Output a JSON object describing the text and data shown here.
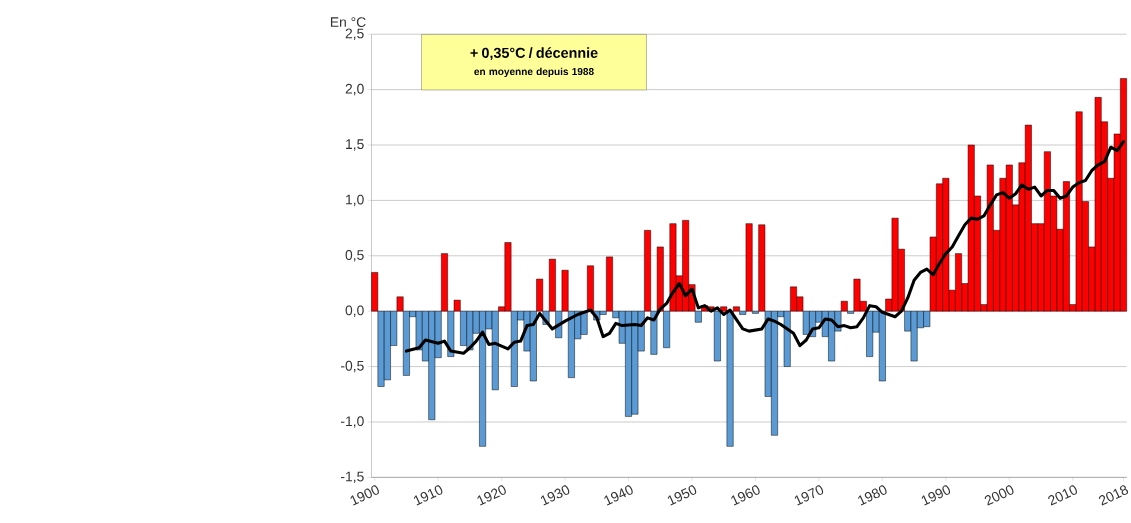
{
  "chart_data": {
    "type": "bar",
    "ylabel": "En °C",
    "annotations": [
      "+ 0,35°C / décennie",
      "en moyenne depuis 1988"
    ],
    "xlim": [
      1899.5,
      2018.5
    ],
    "xticks": [
      1900,
      1910,
      1920,
      1930,
      1940,
      1950,
      1960,
      1970,
      1980,
      1990,
      2000,
      2010,
      2018
    ],
    "ylim": [
      -1.5,
      2.5
    ],
    "yticks": [
      {
        "value": -1.5,
        "label": "-1,5"
      },
      {
        "value": -1.0,
        "label": "-1,0"
      },
      {
        "value": -0.5,
        "label": "-0,5"
      },
      {
        "value": 0,
        "label": "0,0"
      },
      {
        "value": 0.5,
        "label": "0,5"
      },
      {
        "value": 1.0,
        "label": "1,0"
      },
      {
        "value": 1.5,
        "label": "1,5"
      },
      {
        "value": 2.0,
        "label": "2,0"
      },
      {
        "value": 2.5,
        "label": "2,5"
      }
    ],
    "grid": "y",
    "series": [
      {
        "x": [
          1900,
          1901,
          1902,
          1903,
          1904,
          1905,
          1906,
          1907,
          1908,
          1909,
          1910,
          1911,
          1912,
          1913,
          1914,
          1915,
          1916,
          1917,
          1918,
          1919,
          1920,
          1921,
          1922,
          1923,
          1924,
          1925,
          1926,
          1927,
          1928,
          1929,
          1930,
          1931,
          1932,
          1933,
          1934,
          1935,
          1936,
          1937,
          1938,
          1939,
          1940,
          1941,
          1942,
          1943,
          1944,
          1945,
          1946,
          1947,
          1948,
          1949,
          1950,
          1951,
          1952,
          1953,
          1954,
          1955,
          1956,
          1957,
          1958,
          1959,
          1960,
          1961,
          1962,
          1963,
          1964,
          1965,
          1966,
          1967,
          1968,
          1969,
          1970,
          1971,
          1972,
          1973,
          1974,
          1975,
          1976,
          1977,
          1978,
          1979,
          1980,
          1981,
          1982,
          1983,
          1984,
          1985,
          1986,
          1987,
          1988,
          1989,
          1990,
          1991,
          1992,
          1993,
          1994,
          1995,
          1996,
          1997,
          1998,
          1999,
          2000,
          2001,
          2002,
          2003,
          2004,
          2005,
          2006,
          2007,
          2008,
          2009,
          2010,
          2011,
          2012,
          2013,
          2014,
          2015,
          2016,
          2017,
          2018
        ],
        "values": [
          0.35,
          -0.68,
          -0.62,
          -0.31,
          0.13,
          -0.58,
          -0.05,
          -0.35,
          -0.45,
          -0.98,
          -0.42,
          0.52,
          -0.41,
          0.1,
          -0.31,
          -0.35,
          -0.2,
          -1.22,
          -0.16,
          -0.71,
          0.04,
          0.62,
          -0.68,
          -0.08,
          -0.36,
          -0.63,
          0.29,
          -0.12,
          0.47,
          -0.24,
          0.37,
          -0.6,
          -0.25,
          -0.21,
          0.41,
          -0.08,
          -0.03,
          0.49,
          -0.06,
          -0.29,
          -0.95,
          -0.93,
          -0.36,
          0.73,
          -0.39,
          0.58,
          -0.33,
          0.79,
          0.32,
          0.82,
          0.24,
          -0.1,
          0.05,
          0.04,
          -0.45,
          0.04,
          -1.22,
          0.04,
          -0.03,
          0.79,
          -0.02,
          0.78,
          -0.77,
          -1.12,
          -0.05,
          -0.5,
          0.22,
          0.13,
          -0.21,
          -0.23,
          -0.1,
          -0.23,
          -0.45,
          -0.18,
          0.09,
          -0.02,
          0.29,
          0.09,
          -0.41,
          -0.19,
          -0.63,
          0.11,
          0.84,
          0.56,
          -0.18,
          -0.45,
          -0.15,
          -0.14,
          0.67,
          1.15,
          1.2,
          0.19,
          0.52,
          0.25,
          1.5,
          1.04,
          0.06,
          1.32,
          0.73,
          1.2,
          1.32,
          0.96,
          1.34,
          1.68,
          0.79,
          0.79,
          1.44,
          1.04,
          0.74,
          1.17,
          0.06,
          1.8,
          0.99,
          0.58,
          1.93,
          1.71,
          1.2,
          1.6,
          2.1
        ],
        "colors": [
          "#ff0000",
          "#5b9bd5",
          "#5b9bd5",
          "#5b9bd5",
          "#ff0000",
          "#5b9bd5",
          "#5b9bd5",
          "#5b9bd5",
          "#5b9bd5",
          "#5b9bd5",
          "#5b9bd5",
          "#ff0000",
          "#5b9bd5",
          "#ff0000",
          "#5b9bd5",
          "#5b9bd5",
          "#5b9bd5",
          "#5b9bd5",
          "#5b9bd5",
          "#5b9bd5",
          "#ff0000",
          "#ff0000",
          "#5b9bd5",
          "#5b9bd5",
          "#5b9bd5",
          "#5b9bd5",
          "#ff0000",
          "#5b9bd5",
          "#ff0000",
          "#5b9bd5",
          "#ff0000",
          "#5b9bd5",
          "#5b9bd5",
          "#5b9bd5",
          "#ff0000",
          "#5b9bd5",
          "#5b9bd5",
          "#ff0000",
          "#5b9bd5",
          "#5b9bd5",
          "#5b9bd5",
          "#5b9bd5",
          "#5b9bd5",
          "#ff0000",
          "#5b9bd5",
          "#ff0000",
          "#5b9bd5",
          "#ff0000",
          "#ff0000",
          "#ff0000",
          "#ff0000",
          "#5b9bd5",
          "#ff0000",
          "#ff0000",
          "#5b9bd5",
          "#ff0000",
          "#5b9bd5",
          "#ff0000",
          "#5b9bd5",
          "#ff0000",
          "#5b9bd5",
          "#ff0000",
          "#5b9bd5",
          "#5b9bd5",
          "#5b9bd5",
          "#5b9bd5",
          "#ff0000",
          "#ff0000",
          "#5b9bd5",
          "#5b9bd5",
          "#5b9bd5",
          "#5b9bd5",
          "#5b9bd5",
          "#5b9bd5",
          "#ff0000",
          "#5b9bd5",
          "#ff0000",
          "#ff0000",
          "#5b9bd5",
          "#5b9bd5",
          "#5b9bd5",
          "#ff0000",
          "#ff0000",
          "#ff0000",
          "#5b9bd5",
          "#5b9bd5",
          "#5b9bd5",
          "#5b9bd5",
          "#ff0000",
          "#ff0000",
          "#ff0000",
          "#ff0000",
          "#ff0000",
          "#ff0000",
          "#ff0000",
          "#ff0000",
          "#ff0000",
          "#ff0000",
          "#ff0000",
          "#ff0000",
          "#ff0000",
          "#ff0000",
          "#ff0000",
          "#ff0000",
          "#ff0000",
          "#ff0000",
          "#ff0000",
          "#ff0000",
          "#ff0000",
          "#ff0000",
          "#ff0000",
          "#ff0000",
          "#ff0000",
          "#ff0000",
          "#ff0000",
          "#ff0000",
          "#ff0000",
          "#ff0000",
          "#ff0000"
        ]
      },
      {
        "type": "line",
        "color": "#000000",
        "x": [
          1905,
          1907,
          1908,
          1910,
          1911,
          1912,
          1914,
          1915,
          1916,
          1917,
          1918,
          1919,
          1921,
          1922,
          1923,
          1924,
          1925,
          1926,
          1928,
          1930,
          1932,
          1934,
          1935,
          1936,
          1937,
          1938,
          1939,
          1941,
          1942,
          1943,
          1944,
          1945,
          1946,
          1947,
          1948,
          1949,
          1950,
          1951,
          1952,
          1953,
          1954,
          1955,
          1956,
          1958,
          1959,
          1961,
          1962,
          1963,
          1964,
          1966,
          1967,
          1968,
          1969,
          1970,
          1971,
          1972,
          1973,
          1974,
          1975,
          1976,
          1977,
          1978,
          1979,
          1980,
          1981,
          1982,
          1983,
          1984,
          1985,
          1986,
          1987,
          1988,
          1989,
          1990,
          1991,
          1992,
          1993,
          1994,
          1995,
          1996,
          1997,
          1998,
          1999,
          2000,
          2001,
          2002,
          2003,
          2004,
          2005,
          2006,
          2007,
          2008,
          2009,
          2010,
          2011,
          2012,
          2013,
          2014,
          2015,
          2016,
          2017,
          2018
        ],
        "values": [
          -0.36,
          -0.33,
          -0.26,
          -0.29,
          -0.27,
          -0.36,
          -0.38,
          -0.33,
          -0.27,
          -0.19,
          -0.3,
          -0.29,
          -0.34,
          -0.28,
          -0.27,
          -0.13,
          -0.12,
          -0.02,
          -0.16,
          -0.09,
          -0.03,
          0.01,
          -0.06,
          -0.23,
          -0.2,
          -0.11,
          -0.13,
          -0.12,
          -0.13,
          -0.06,
          -0.08,
          0.02,
          0.07,
          0.17,
          0.25,
          0.14,
          0.2,
          0.03,
          0.05,
          0.0,
          0.03,
          -0.03,
          0.01,
          -0.16,
          -0.18,
          -0.16,
          -0.07,
          -0.09,
          -0.12,
          -0.2,
          -0.31,
          -0.26,
          -0.16,
          -0.15,
          -0.07,
          -0.08,
          -0.14,
          -0.13,
          -0.15,
          -0.14,
          -0.06,
          0.05,
          0.04,
          -0.01,
          -0.03,
          -0.05,
          0.0,
          0.12,
          0.28,
          0.35,
          0.38,
          0.33,
          0.43,
          0.52,
          0.58,
          0.68,
          0.78,
          0.84,
          0.83,
          0.86,
          0.96,
          1.05,
          1.07,
          1.02,
          1.06,
          1.14,
          1.1,
          1.12,
          1.04,
          1.09,
          1.09,
          1.02,
          1.04,
          1.12,
          1.16,
          1.18,
          1.27,
          1.32,
          1.35,
          1.48,
          1.45,
          1.53
        ]
      }
    ]
  }
}
